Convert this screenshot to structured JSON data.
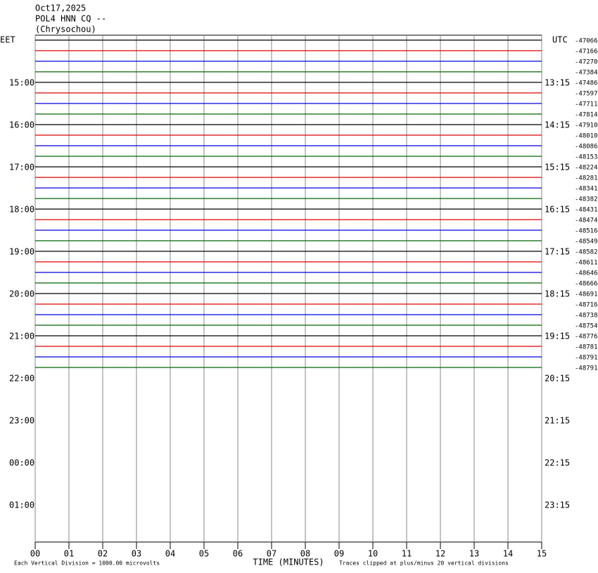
{
  "chart_data": {
    "type": "helicorder",
    "header": [
      "Oct17,2025",
      "POL4 HNN CQ --",
      "(Chrysochou)"
    ],
    "left_axis_label": "EET",
    "right_axis_label": "UTC",
    "left_labels": [
      "15:00",
      "16:00",
      "17:00",
      "18:00",
      "19:00",
      "20:00",
      "21:00",
      "22:00",
      "23:00",
      "00:00",
      "01:00"
    ],
    "right_labels": [
      "13:15",
      "14:15",
      "15:15",
      "16:15",
      "17:15",
      "18:15",
      "19:15",
      "20:15",
      "21:15",
      "22:15",
      "23:15"
    ],
    "trace_colors": [
      "#000000",
      "#e00000",
      "#0000e0",
      "#006400"
    ],
    "trace_offsets": [
      -47066,
      -47166,
      -47270,
      -47384,
      -47486,
      -47597,
      -47711,
      -47814,
      -47910,
      -48010,
      -48086,
      -48153,
      -48224,
      -48281,
      -48341,
      -48382,
      -48431,
      -48474,
      -48516,
      -48549,
      -48582,
      -48611,
      -48646,
      -48666,
      -48691,
      -48716,
      -48738,
      -48754,
      -48776,
      -48781,
      -48791,
      -48791
    ],
    "xlim": [
      0,
      15
    ],
    "xticks": [
      {
        "value": 0,
        "label": "00"
      },
      {
        "value": 1,
        "label": "01"
      },
      {
        "value": 2,
        "label": "02"
      },
      {
        "value": 3,
        "label": "03"
      },
      {
        "value": 4,
        "label": "04"
      },
      {
        "value": 5,
        "label": "05"
      },
      {
        "value": 6,
        "label": "06"
      },
      {
        "value": 7,
        "label": "07"
      },
      {
        "value": 8,
        "label": "08"
      },
      {
        "value": 9,
        "label": "09"
      },
      {
        "value": 10,
        "label": "10"
      },
      {
        "value": 11,
        "label": "11"
      },
      {
        "value": 12,
        "label": "12"
      },
      {
        "value": 13,
        "label": "13"
      },
      {
        "value": 14,
        "label": "14"
      },
      {
        "value": 15,
        "label": "15"
      }
    ],
    "xlabel": "TIME (MINUTES)",
    "scale_note": "Each Vertical Division = 1000.00 microvolts",
    "clip_note": "Traces clipped at plus/minus 20 vertical divisions"
  }
}
